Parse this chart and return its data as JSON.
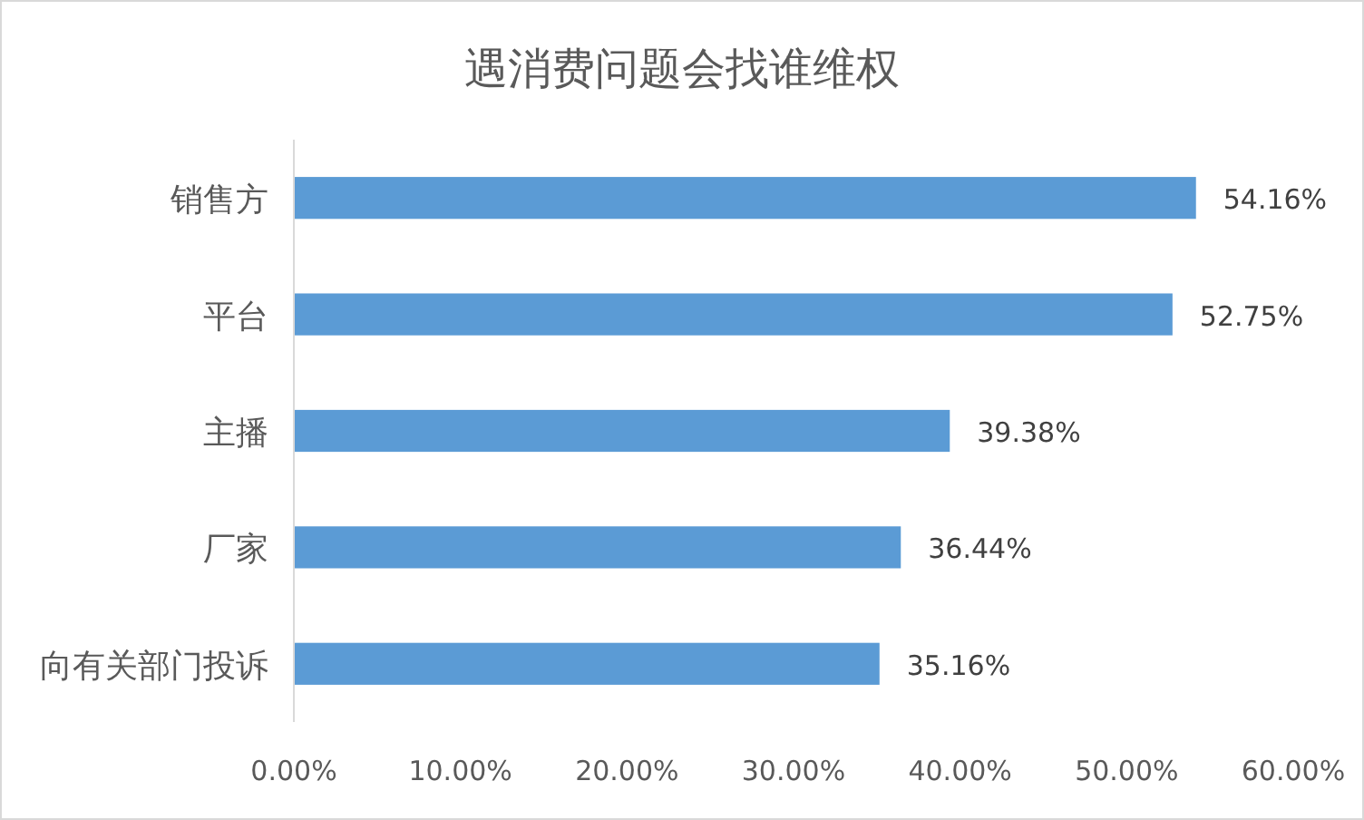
{
  "chart_data": {
    "type": "bar",
    "orientation": "horizontal",
    "title": "遇消费问题会找谁维权",
    "categories": [
      "销售方",
      "平台",
      "主播",
      "厂家",
      "向有关部门投诉"
    ],
    "values": [
      54.16,
      52.75,
      39.38,
      36.44,
      35.16
    ],
    "value_labels": [
      "54.16%",
      "52.75%",
      "39.38%",
      "36.44%",
      "35.16%"
    ],
    "color": "#5b9bd5",
    "xlim": [
      0,
      60
    ],
    "xticks": [
      {
        "value": 0,
        "label": "0.00%"
      },
      {
        "value": 10,
        "label": "10.00%"
      },
      {
        "value": 20,
        "label": "20.00%"
      },
      {
        "value": 30,
        "label": "30.00%"
      },
      {
        "value": 40,
        "label": "40.00%"
      },
      {
        "value": 50,
        "label": "50.00%"
      },
      {
        "value": 60,
        "label": "60.00%"
      }
    ]
  }
}
